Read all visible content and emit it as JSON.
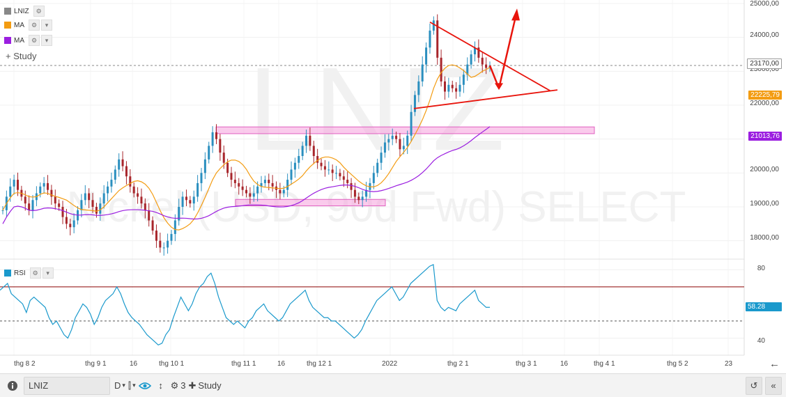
{
  "legend": {
    "main": {
      "label": "LNIZ",
      "color": "#888888"
    },
    "ma1": {
      "label": "MA",
      "color": "#f39c12"
    },
    "ma2": {
      "label": "MA",
      "color": "#9b1ee0"
    },
    "add_study": "+ Study",
    "rsi": {
      "label": "RSI",
      "color": "#1a99cc"
    }
  },
  "watermark": {
    "symbol": "LNIZ",
    "description": "Nickel (USD, 90d Fwd) SELECT"
  },
  "price_axis": {
    "labels": [
      "25000,00",
      "24000,00",
      "23000,00",
      "22000,00",
      "20000,00",
      "19000,00",
      "18000,00"
    ],
    "tags": [
      {
        "text": "23170,00",
        "bg": "#ffffff",
        "fg": "#333333"
      },
      {
        "text": "22225,79",
        "bg": "#f39c12",
        "fg": "#ffffff"
      },
      {
        "text": "21013,76",
        "bg": "#9b1ee0",
        "fg": "#ffffff"
      }
    ]
  },
  "rsi_axis": {
    "labels": [
      "80",
      "40"
    ],
    "tag": {
      "text": "58.28",
      "bg": "#1a99cc",
      "fg": "#ffffff"
    }
  },
  "time_axis": [
    "thg 8 2",
    "thg 9 1",
    "16",
    "thg 10 1",
    "thg 11 1",
    "16",
    "thg 12 1",
    "2022",
    "thg 2 1",
    "thg 3 1",
    "16",
    "thg 4 1",
    "thg 5 2",
    "23"
  ],
  "toolbar": {
    "info_icon": "info-icon",
    "symbol": "LNIZ",
    "interval": "D",
    "chart_type_icon": "candles-icon",
    "eye_icon": "eye-icon",
    "scale_icon": "vertical-scale-icon",
    "settings_count": "3",
    "study": "Study",
    "undo_icon": "undo-icon",
    "collapse_icon": "collapse-icon"
  },
  "chart_data": {
    "type": "candlestick",
    "symbol": "LNIZ",
    "price_range": [
      17500,
      25000
    ],
    "rsi_range": [
      30,
      85
    ],
    "rsi_levels": [
      70,
      50
    ],
    "horizontal_line": 23170,
    "zones": [
      {
        "from": 21200,
        "to": 21400,
        "color": "#f7a8e0"
      },
      {
        "from": 19050,
        "to": 19200,
        "color": "#f7a8e0"
      }
    ],
    "closes": [
      18900,
      19300,
      19600,
      19800,
      19500,
      19300,
      19100,
      18900,
      19200,
      19400,
      19600,
      19700,
      19500,
      19300,
      19100,
      19000,
      18700,
      18500,
      18400,
      18600,
      18900,
      19200,
      19400,
      19200,
      19000,
      18800,
      19100,
      19400,
      19600,
      19800,
      20100,
      20400,
      20200,
      19900,
      19600,
      19400,
      19300,
      19100,
      18900,
      18600,
      18300,
      18000,
      17800,
      17800,
      18000,
      18200,
      18600,
      19000,
      19300,
      19200,
      19100,
      19300,
      19700,
      20000,
      20400,
      20800,
      21200,
      21000,
      20600,
      20300,
      20000,
      19800,
      19700,
      19600,
      19500,
      19400,
      19300,
      19400,
      19600,
      19700,
      19800,
      19700,
      19600,
      19500,
      19400,
      19500,
      19800,
      20100,
      20300,
      20500,
      20800,
      21100,
      20800,
      20500,
      20300,
      20200,
      20100,
      20100,
      20000,
      20000,
      19900,
      19800,
      19700,
      19500,
      19300,
      19200,
      19300,
      19500,
      19700,
      20000,
      20300,
      20600,
      20900,
      21000,
      21100,
      21000,
      20700,
      20800,
      21100,
      21800,
      22300,
      22700,
      23200,
      23700,
      24200,
      24500,
      23400,
      22700,
      22400,
      22600,
      22500,
      22400,
      22600,
      22900,
      23200,
      23500,
      23700,
      23400,
      23200,
      23100,
      23170
    ],
    "rsi": [
      68,
      70,
      72,
      66,
      64,
      62,
      60,
      55,
      62,
      64,
      62,
      60,
      58,
      52,
      48,
      50,
      46,
      42,
      40,
      45,
      52,
      56,
      60,
      58,
      54,
      48,
      52,
      58,
      62,
      64,
      66,
      70,
      66,
      60,
      55,
      52,
      50,
      48,
      45,
      42,
      40,
      38,
      36,
      37,
      42,
      45,
      52,
      58,
      64,
      60,
      56,
      60,
      66,
      70,
      72,
      76,
      78,
      72,
      64,
      58,
      52,
      50,
      48,
      50,
      48,
      46,
      50,
      52,
      56,
      58,
      60,
      56,
      54,
      52,
      50,
      52,
      56,
      60,
      62,
      64,
      66,
      68,
      62,
      58,
      56,
      54,
      52,
      52,
      50,
      50,
      48,
      46,
      44,
      42,
      40,
      42,
      45,
      50,
      54,
      58,
      62,
      64,
      66,
      68,
      70,
      66,
      62,
      64,
      68,
      72,
      74,
      76,
      78,
      80,
      82,
      83,
      62,
      58,
      56,
      58,
      57,
      56,
      60,
      62,
      64,
      66,
      68,
      62,
      60,
      58,
      58
    ]
  }
}
